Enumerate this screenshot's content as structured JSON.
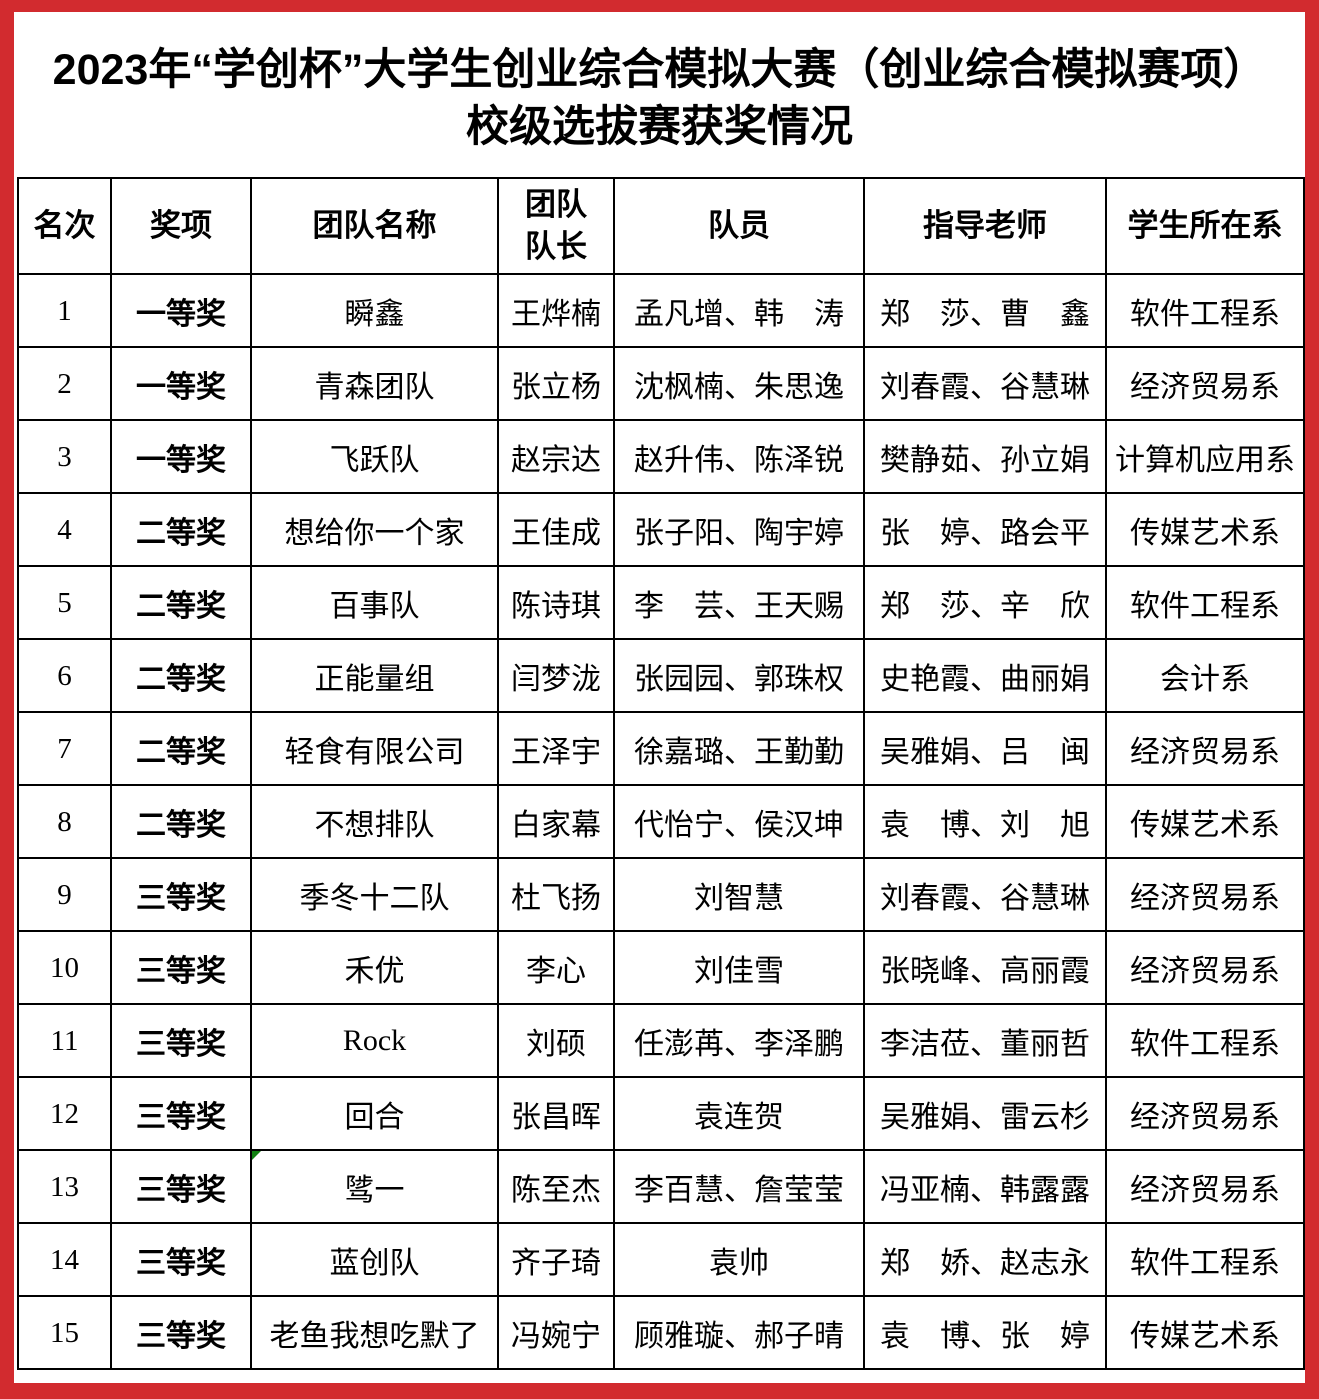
{
  "page": {
    "title_line1": "2023年“学创杯”大学生创业综合模拟大赛（创业综合模拟赛项）",
    "title_line2": "校级选拔赛获奖情况",
    "colors": {
      "frame_red": "#d22b2f",
      "table_border": "#000000",
      "comment_marker_green": "#108010"
    }
  },
  "table": {
    "headers": [
      "名次",
      "奖项",
      "团队名称",
      "团队\n队长",
      "队员",
      "指导老师",
      "学生所在系"
    ],
    "comment_marker": {
      "row_rank": "13",
      "column": "团队名称"
    },
    "rows": [
      {
        "rank": "1",
        "award": "一等奖",
        "team": "瞬鑫",
        "captain": "王烨楠",
        "members": "孟凡增、韩　涛",
        "teachers": "郑　莎、曹　鑫",
        "department": "软件工程系"
      },
      {
        "rank": "2",
        "award": "一等奖",
        "team": "青森团队",
        "captain": "张立杨",
        "members": "沈枫楠、朱思逸",
        "teachers": "刘春霞、谷慧琳",
        "department": "经济贸易系"
      },
      {
        "rank": "3",
        "award": "一等奖",
        "team": "飞跃队",
        "captain": "赵宗达",
        "members": "赵升伟、陈泽锐",
        "teachers": "樊静茹、孙立娟",
        "department": "计算机应用系"
      },
      {
        "rank": "4",
        "award": "二等奖",
        "team": "想给你一个家",
        "captain": "王佳成",
        "members": "张子阳、陶宇婷",
        "teachers": "张　婷、路会平",
        "department": "传媒艺术系"
      },
      {
        "rank": "5",
        "award": "二等奖",
        "team": "百事队",
        "captain": "陈诗琪",
        "members": "李　芸、王天赐",
        "teachers": "郑　莎、辛　欣",
        "department": "软件工程系"
      },
      {
        "rank": "6",
        "award": "二等奖",
        "team": "正能量组",
        "captain": "闫梦泷",
        "members": "张园园、郭珠权",
        "teachers": "史艳霞、曲丽娟",
        "department": "会计系"
      },
      {
        "rank": "7",
        "award": "二等奖",
        "team": "轻食有限公司",
        "captain": "王泽宇",
        "members": "徐嘉璐、王勤勤",
        "teachers": "吴雅娟、吕　闽",
        "department": "经济贸易系"
      },
      {
        "rank": "8",
        "award": "二等奖",
        "team": "不想排队",
        "captain": "白家幕",
        "members": "代怡宁、侯汉坤",
        "teachers": "袁　博、刘　旭",
        "department": "传媒艺术系"
      },
      {
        "rank": "9",
        "award": "三等奖",
        "team": "季冬十二队",
        "captain": "杜飞扬",
        "members": "刘智慧",
        "teachers": "刘春霞、谷慧琳",
        "department": "经济贸易系"
      },
      {
        "rank": "10",
        "award": "三等奖",
        "team": "禾优",
        "captain": "李心",
        "members": "刘佳雪",
        "teachers": "张晓峰、高丽霞",
        "department": "经济贸易系"
      },
      {
        "rank": "11",
        "award": "三等奖",
        "team": "Rock",
        "captain": "刘硕",
        "members": "任澎苒、李泽鹏",
        "teachers": "李洁莅、董丽哲",
        "department": "软件工程系"
      },
      {
        "rank": "12",
        "award": "三等奖",
        "team": "回合",
        "captain": "张昌晖",
        "members": "袁连贺",
        "teachers": "吴雅娟、雷云杉",
        "department": "经济贸易系"
      },
      {
        "rank": "13",
        "award": "三等奖",
        "team": "骘一",
        "captain": "陈至杰",
        "members": "李百慧、詹莹莹",
        "teachers": "冯亚楠、韩露露",
        "department": "经济贸易系"
      },
      {
        "rank": "14",
        "award": "三等奖",
        "team": "蓝创队",
        "captain": "齐子琦",
        "members": "袁帅",
        "teachers": "郑　娇、赵志永",
        "department": "软件工程系"
      },
      {
        "rank": "15",
        "award": "三等奖",
        "team": "老鱼我想吃默了",
        "captain": "冯婉宁",
        "members": "顾雅璇、郝子晴",
        "teachers": "袁　博、张　婷",
        "department": "传媒艺术系"
      }
    ]
  }
}
